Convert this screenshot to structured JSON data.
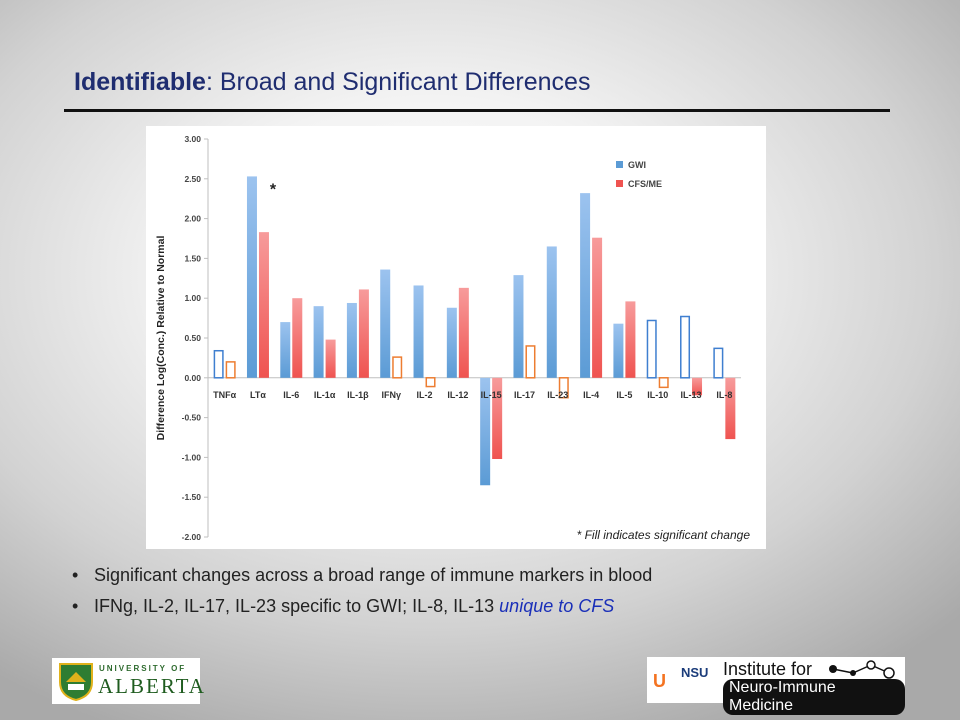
{
  "slide": {
    "title_bold": "Identifiable",
    "title_rest": ": Broad and Significant Differences",
    "footnote": "* Fill indicates significant change",
    "bullets": [
      {
        "text": "Significant changes across a broad range of immune markers in blood",
        "emph": ""
      },
      {
        "text": "IFNg, IL-2, IL-17, IL-23 specific to GWI; IL-8, IL-13 ",
        "emph": "unique to CFS"
      }
    ],
    "logo_left": {
      "line1": "UNIVERSITY OF",
      "line2": "ALBERTA"
    },
    "logo_right": {
      "line1": "Institute for",
      "line2": "Neuro-Immune Medicine",
      "nsu": "NSU",
      "miami": "U"
    }
  },
  "colors": {
    "title": "#1f2d70",
    "gwi": "#5b9bd5",
    "cfs": "#ef5350",
    "outline_gwi": "#3f7fd0",
    "outline_cfs": "#ed7d31"
  },
  "chart_data": {
    "type": "bar",
    "title": "",
    "xlabel": "",
    "ylabel": "Difference Log(Conc.) Relative to Normal",
    "ylim": [
      -2.0,
      3.0
    ],
    "yticks": [
      "3.00",
      "2.50",
      "2.00",
      "1.50",
      "1.00",
      "0.50",
      "0.00",
      "-0.50",
      "-1.00",
      "-1.50",
      "-2.00"
    ],
    "categories": [
      "TNFα",
      "LTα",
      "IL-6",
      "IL-1α",
      "IL-1β",
      "IFNγ",
      "IL-2",
      "IL-12",
      "IL-15",
      "IL-17",
      "IL-23",
      "IL-4",
      "IL-5",
      "IL-10",
      "IL-13",
      "IL-8"
    ],
    "series": [
      {
        "name": "GWI",
        "values": [
          0.34,
          2.53,
          0.7,
          0.9,
          0.94,
          1.36,
          1.16,
          0.88,
          -1.35,
          1.29,
          1.65,
          2.32,
          0.68,
          0.72,
          0.77,
          0.37
        ],
        "significant": [
          false,
          true,
          true,
          true,
          true,
          true,
          true,
          true,
          true,
          true,
          true,
          true,
          true,
          false,
          false,
          false
        ]
      },
      {
        "name": "CFS/ME",
        "values": [
          0.2,
          1.83,
          1.0,
          0.48,
          1.11,
          0.26,
          -0.11,
          1.13,
          -1.02,
          0.4,
          -0.25,
          1.76,
          0.96,
          -0.12,
          -0.22,
          -0.77
        ],
        "significant": [
          false,
          true,
          true,
          true,
          true,
          false,
          false,
          true,
          true,
          false,
          false,
          true,
          true,
          false,
          true,
          true
        ]
      }
    ],
    "annotations": [
      "*"
    ],
    "legend_position": "top-right",
    "grid": false
  }
}
